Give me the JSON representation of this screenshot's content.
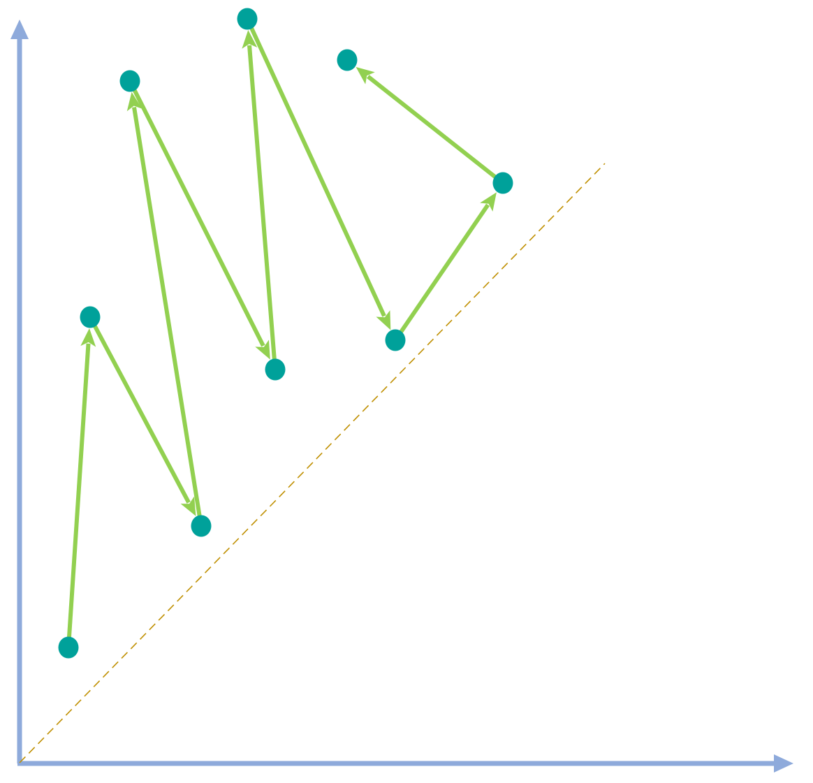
{
  "diagram": {
    "colors": {
      "axis": "#8eaadb",
      "arrow": "#92d050",
      "node": "#00a19a",
      "diagonal": "#bf8f00",
      "background": "#ffffff"
    },
    "axes": [
      "x-axis",
      "y-axis"
    ],
    "node_count": 9,
    "edge_count": 8,
    "diagonal_style": "dashed"
  }
}
